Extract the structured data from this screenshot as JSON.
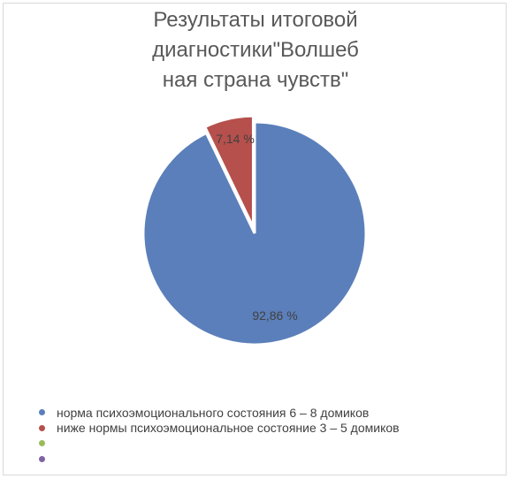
{
  "chart_data": {
    "type": "pie",
    "title_lines": [
      "Результаты итоговой",
      "диагностики\"Волшеб",
      "ная страна чувств\""
    ],
    "slices": [
      {
        "label": "норма психоэмоционального состояния 6 – 8 домиков",
        "value": 92.86,
        "value_label": "92,86 %",
        "color": "#5b7fba"
      },
      {
        "label": "ниже нормы психоэмоциональное состояние 3 – 5 домиков",
        "value": 7.14,
        "value_label": "7,14 %",
        "color": "#b6504c"
      },
      {
        "label": "",
        "value": 0,
        "value_label": "",
        "color": "#9bbb59"
      },
      {
        "label": "",
        "value": 0,
        "value_label": "",
        "color": "#8064a2"
      }
    ],
    "legend_position": "bottom-left"
  }
}
